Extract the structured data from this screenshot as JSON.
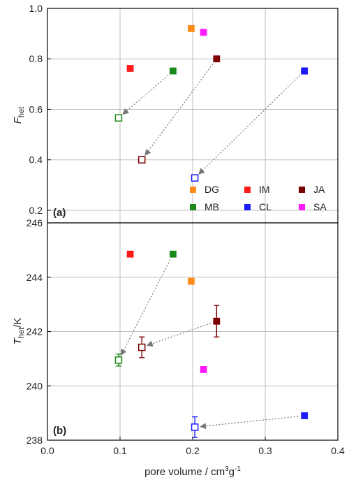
{
  "chart_data": [
    {
      "type": "scatter",
      "panel_label": "(a)",
      "ylabel": "F",
      "ylabel_sub": "het",
      "xlabel": "",
      "xlim": [
        0.0,
        0.4
      ],
      "ylim": [
        0.15,
        1.0
      ],
      "yticks": [
        0.2,
        0.4,
        0.6,
        0.8,
        1.0
      ],
      "ytick_labels": [
        "0.2",
        "0.4",
        "0.6",
        "0.8",
        "1.0"
      ],
      "grid": true,
      "legend": "bottom-right",
      "series": [
        {
          "name": "DG",
          "color": "#ff8c1a",
          "filled": true,
          "points": [
            {
              "x": 0.198,
              "y": 0.92
            }
          ]
        },
        {
          "name": "IM",
          "color": "#ff1a1a",
          "filled": true,
          "points": [
            {
              "x": 0.114,
              "y": 0.762
            }
          ]
        },
        {
          "name": "JA",
          "color": "#7a0000",
          "filled": true,
          "points": [
            {
              "x": 0.233,
              "y": 0.8
            }
          ]
        },
        {
          "name": "MB",
          "color": "#1a8a1a",
          "filled": true,
          "points": [
            {
              "x": 0.173,
              "y": 0.752
            }
          ]
        },
        {
          "name": "CL",
          "color": "#1a1aff",
          "filled": true,
          "points": [
            {
              "x": 0.354,
              "y": 0.752,
              "err": 0.012
            }
          ]
        },
        {
          "name": "SA",
          "color": "#ff1aff",
          "filled": true,
          "points": [
            {
              "x": 0.215,
              "y": 0.905
            }
          ]
        },
        {
          "name": "MB",
          "color": "#1a8a1a",
          "filled": false,
          "points": [
            {
              "x": 0.098,
              "y": 0.566
            }
          ]
        },
        {
          "name": "JA",
          "color": "#7a0000",
          "filled": false,
          "points": [
            {
              "x": 0.13,
              "y": 0.4
            }
          ]
        },
        {
          "name": "CL",
          "color": "#1a1aff",
          "filled": false,
          "points": [
            {
              "x": 0.203,
              "y": 0.328
            }
          ]
        }
      ],
      "arrows": [
        {
          "from": [
            0.173,
            0.752
          ],
          "to": [
            0.098,
            0.566
          ]
        },
        {
          "from": [
            0.233,
            0.8
          ],
          "to": [
            0.13,
            0.4
          ]
        },
        {
          "from": [
            0.354,
            0.752
          ],
          "to": [
            0.203,
            0.328
          ]
        }
      ]
    },
    {
      "type": "scatter",
      "panel_label": "(b)",
      "ylabel": "T",
      "ylabel_sub": "het",
      "ylabel_unit": "/K",
      "xlabel": "pore volume / cm",
      "xlabel_sup1": "3",
      "xlabel_mid": "g",
      "xlabel_sup2": "-1",
      "xlim": [
        0.0,
        0.4
      ],
      "ylim": [
        238,
        246
      ],
      "xticks": [
        0.0,
        0.1,
        0.2,
        0.3,
        0.4
      ],
      "xtick_labels": [
        "0.0",
        "0.1",
        "0.2",
        "0.3",
        "0.4"
      ],
      "yticks": [
        238,
        240,
        242,
        244,
        246
      ],
      "ytick_labels": [
        "238",
        "240",
        "242",
        "244",
        "246"
      ],
      "grid": true,
      "series": [
        {
          "name": "DG",
          "color": "#ff8c1a",
          "filled": true,
          "points": [
            {
              "x": 0.198,
              "y": 243.85
            }
          ]
        },
        {
          "name": "IM",
          "color": "#ff1a1a",
          "filled": true,
          "points": [
            {
              "x": 0.114,
              "y": 244.85
            }
          ]
        },
        {
          "name": "JA",
          "color": "#7a0000",
          "filled": true,
          "points": [
            {
              "x": 0.233,
              "y": 242.38,
              "err": 0.58
            }
          ]
        },
        {
          "name": "MB",
          "color": "#1a8a1a",
          "filled": true,
          "points": [
            {
              "x": 0.173,
              "y": 244.85
            }
          ]
        },
        {
          "name": "CL",
          "color": "#1a1aff",
          "filled": true,
          "points": [
            {
              "x": 0.354,
              "y": 238.9
            }
          ]
        },
        {
          "name": "SA",
          "color": "#ff1aff",
          "filled": true,
          "points": [
            {
              "x": 0.215,
              "y": 240.6
            }
          ]
        },
        {
          "name": "MB",
          "color": "#1a8a1a",
          "filled": false,
          "points": [
            {
              "x": 0.098,
              "y": 240.95,
              "err": 0.22
            }
          ]
        },
        {
          "name": "JA",
          "color": "#7a0000",
          "filled": false,
          "points": [
            {
              "x": 0.13,
              "y": 241.42,
              "err": 0.38
            }
          ]
        },
        {
          "name": "CL",
          "color": "#1a1aff",
          "filled": false,
          "points": [
            {
              "x": 0.203,
              "y": 238.48,
              "err": 0.38
            }
          ]
        }
      ],
      "arrows": [
        {
          "from": [
            0.173,
            244.85
          ],
          "to": [
            0.098,
            240.95
          ]
        },
        {
          "from": [
            0.233,
            242.38
          ],
          "to": [
            0.13,
            241.42
          ]
        },
        {
          "from": [
            0.354,
            238.9
          ],
          "to": [
            0.203,
            238.48
          ]
        }
      ]
    }
  ],
  "legend": {
    "rows": [
      [
        {
          "label": "DG",
          "color": "#ff8c1a"
        },
        {
          "label": "IM",
          "color": "#ff1a1a"
        },
        {
          "label": "JA",
          "color": "#7a0000"
        }
      ],
      [
        {
          "label": "MB",
          "color": "#1a8a1a"
        },
        {
          "label": "CL",
          "color": "#1a1aff"
        },
        {
          "label": "SA",
          "color": "#ff1aff"
        }
      ]
    ]
  }
}
